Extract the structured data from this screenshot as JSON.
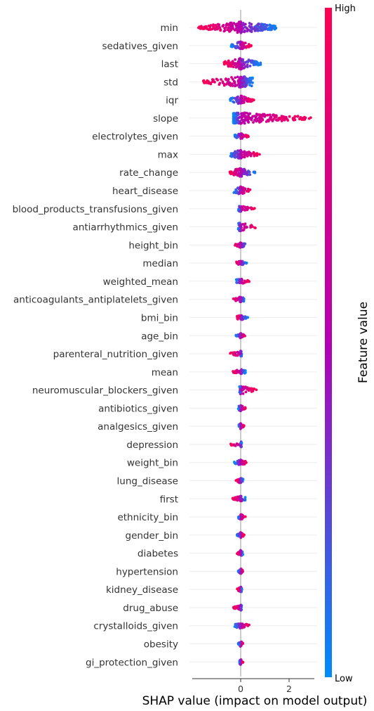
{
  "chart_data": {
    "type": "scatter",
    "subtype": "shap-beeswarm",
    "title": "",
    "xlabel": "SHAP value (impact on model output)",
    "ylabel": "",
    "xlim": [
      -1.95,
      3.05
    ],
    "xticks": [
      0,
      2
    ],
    "zero_line": true,
    "grid": false,
    "colorbar": {
      "title": "Feature value",
      "high_label": "High",
      "low_label": "Low",
      "low_color": "#008bfb",
      "mid_color": "#b300b3",
      "high_color": "#ff0052"
    },
    "features": [
      {
        "name": "min",
        "lo": -1.75,
        "hi": 1.55,
        "spread": "wide",
        "high_side": "neg"
      },
      {
        "name": "sedatives_given",
        "lo": -0.4,
        "hi": 0.45,
        "spread": "both",
        "high_side": "pos"
      },
      {
        "name": "last",
        "lo": -0.7,
        "hi": 0.85,
        "spread": "both",
        "high_side": "neg"
      },
      {
        "name": "std",
        "lo": -1.6,
        "hi": 0.5,
        "spread": "both",
        "high_side": "neg"
      },
      {
        "name": "iqr",
        "lo": -0.45,
        "hi": 0.55,
        "spread": "both",
        "high_side": "pos"
      },
      {
        "name": "slope",
        "lo": -0.3,
        "hi": 2.9,
        "spread": "right",
        "high_side": "pos"
      },
      {
        "name": "electrolytes_given",
        "lo": -0.25,
        "hi": 0.35,
        "spread": "both",
        "high_side": "pos"
      },
      {
        "name": "max",
        "lo": -0.45,
        "hi": 0.8,
        "spread": "both",
        "high_side": "pos"
      },
      {
        "name": "rate_change",
        "lo": -0.45,
        "hi": 0.65,
        "spread": "both",
        "high_side": "neg"
      },
      {
        "name": "heart_disease",
        "lo": -0.3,
        "hi": 0.45,
        "spread": "both",
        "high_side": "pos"
      },
      {
        "name": "blood_products_transfusions_given",
        "lo": -0.1,
        "hi": 0.6,
        "spread": "both",
        "high_side": "pos"
      },
      {
        "name": "antiarrhythmics_given",
        "lo": -0.1,
        "hi": 0.65,
        "spread": "both",
        "high_side": "pos"
      },
      {
        "name": "height_bin",
        "lo": -0.25,
        "hi": 0.25,
        "spread": "both",
        "high_side": "neg"
      },
      {
        "name": "median",
        "lo": -0.2,
        "hi": 0.25,
        "spread": "both",
        "high_side": "neg"
      },
      {
        "name": "weighted_mean",
        "lo": -0.2,
        "hi": 0.35,
        "spread": "both",
        "high_side": "pos"
      },
      {
        "name": "anticoagulants_antiplatelets_given",
        "lo": -0.35,
        "hi": 0.15,
        "spread": "both",
        "high_side": "neg"
      },
      {
        "name": "bmi_bin",
        "lo": -0.15,
        "hi": 0.3,
        "spread": "both",
        "high_side": "neg"
      },
      {
        "name": "age_bin",
        "lo": -0.2,
        "hi": 0.2,
        "spread": "both",
        "high_side": "pos"
      },
      {
        "name": "parenteral_nutrition_given",
        "lo": -0.5,
        "hi": 0.05,
        "spread": "both",
        "high_side": "neg"
      },
      {
        "name": "mean",
        "lo": -0.35,
        "hi": 0.2,
        "spread": "both",
        "high_side": "neg"
      },
      {
        "name": "neuromuscular_blockers_given",
        "lo": -0.05,
        "hi": 0.65,
        "spread": "both",
        "high_side": "pos"
      },
      {
        "name": "antibiotics_given",
        "lo": -0.1,
        "hi": 0.25,
        "spread": "both",
        "high_side": "pos"
      },
      {
        "name": "analgesics_given",
        "lo": -0.1,
        "hi": 0.15,
        "spread": "both",
        "high_side": "pos"
      },
      {
        "name": "depression",
        "lo": -0.45,
        "hi": 0.05,
        "spread": "both",
        "high_side": "neg"
      },
      {
        "name": "weight_bin",
        "lo": -0.3,
        "hi": 0.25,
        "spread": "both",
        "high_side": "pos"
      },
      {
        "name": "lung_disease",
        "lo": -0.2,
        "hi": 0.1,
        "spread": "both",
        "high_side": "neg"
      },
      {
        "name": "first",
        "lo": -0.35,
        "hi": 0.2,
        "spread": "both",
        "high_side": "neg"
      },
      {
        "name": "ethnicity_bin",
        "lo": -0.1,
        "hi": 0.2,
        "spread": "both",
        "high_side": "pos"
      },
      {
        "name": "gender_bin",
        "lo": -0.15,
        "hi": 0.15,
        "spread": "both",
        "high_side": "pos"
      },
      {
        "name": "diabetes",
        "lo": -0.15,
        "hi": 0.1,
        "spread": "both",
        "high_side": "neg"
      },
      {
        "name": "hypertension",
        "lo": -0.1,
        "hi": 0.1,
        "spread": "both",
        "high_side": "pos"
      },
      {
        "name": "kidney_disease",
        "lo": -0.15,
        "hi": 0.05,
        "spread": "both",
        "high_side": "neg"
      },
      {
        "name": "drug_abuse",
        "lo": -0.3,
        "hi": 0.05,
        "spread": "both",
        "high_side": "neg"
      },
      {
        "name": "crystalloids_given",
        "lo": -0.25,
        "hi": 0.45,
        "spread": "both",
        "high_side": "pos"
      },
      {
        "name": "obesity",
        "lo": -0.1,
        "hi": 0.1,
        "spread": "both",
        "high_side": "pos"
      },
      {
        "name": "gi_protection_given",
        "lo": -0.05,
        "hi": 0.1,
        "spread": "both",
        "high_side": "pos"
      }
    ]
  }
}
